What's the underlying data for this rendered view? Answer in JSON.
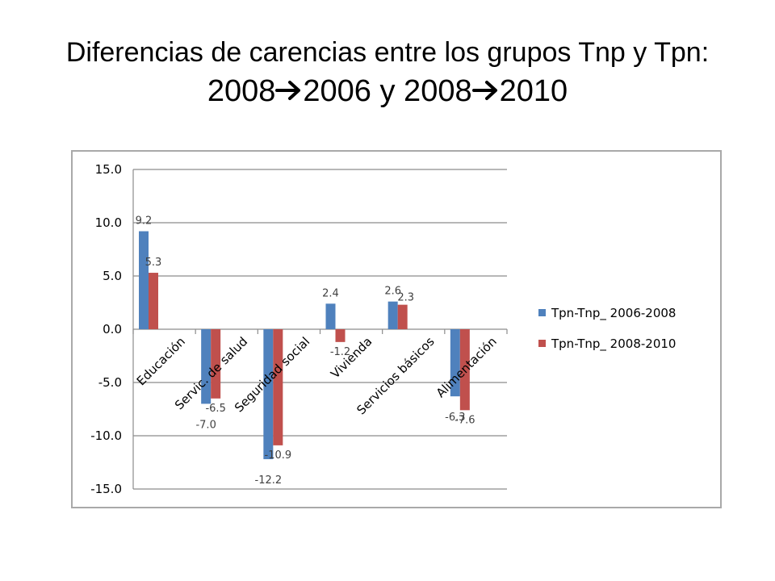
{
  "slide": {
    "title_prefix": "Diferencias de carencias entre los grupos Tnp y Tpn",
    "title_colon": ":",
    "title_year_a": "2008",
    "title_arrow_icon": "right-arrow-icon",
    "title_year_b": "2006 y 2008",
    "title_year_c": "2010"
  },
  "chart_data": {
    "type": "bar",
    "categories": [
      "Educación",
      "Servic. de salud",
      "Seguridad social",
      "Vivienda",
      "Servicios básicos",
      "Alimentación"
    ],
    "series": [
      {
        "name": "Tpn-Tnp_ 2006-2008",
        "values": [
          9.2,
          -7.0,
          -12.2,
          2.4,
          2.6,
          -6.3
        ],
        "labels": [
          "9.2",
          "-7.0",
          "-12.2",
          "2.4",
          "2.6",
          "-6.3"
        ],
        "color": "#4f81bd"
      },
      {
        "name": "Tpn-Tnp_ 2008-2010",
        "values": [
          5.3,
          -6.5,
          -10.9,
          -1.2,
          2.3,
          -7.6
        ],
        "labels": [
          "5.3",
          "-6.5",
          "-10.9",
          "-1.2",
          "2.3",
          "-7.6"
        ],
        "color": "#c0504d"
      }
    ],
    "ylim": [
      -15,
      15
    ],
    "yticks": [
      15,
      10,
      5,
      0,
      -5,
      -10,
      -15
    ],
    "ytick_labels": [
      "15.0",
      "10.0",
      "5.0",
      "0.0",
      "-5.0",
      "-10.0",
      "-15.0"
    ],
    "grid": true,
    "legend_position": "right",
    "title": "",
    "xlabel": "",
    "ylabel": ""
  }
}
